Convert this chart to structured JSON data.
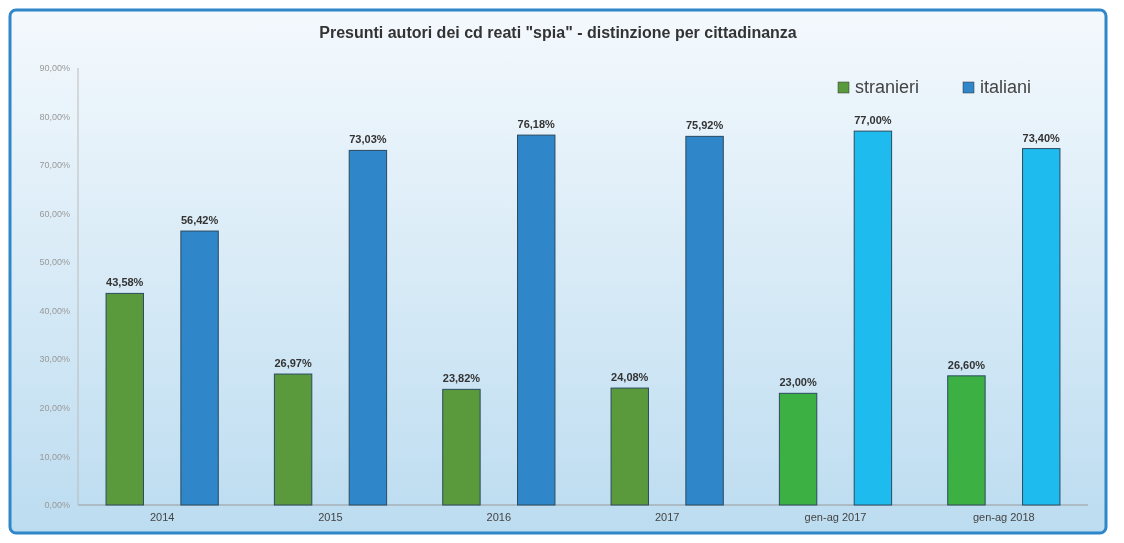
{
  "chart_data": {
    "type": "bar",
    "title": "Presunti autori dei cd reati \"spia\" - distinzione per cittadinanza",
    "categories": [
      "2014",
      "2015",
      "2016",
      "2017",
      "gen-ag 2017",
      "gen-ag 2018"
    ],
    "series": [
      {
        "name": "stranieri",
        "color": "#5a9a3c",
        "colors": [
          "#5a9a3c",
          "#5a9a3c",
          "#5a9a3c",
          "#5a9a3c",
          "#3cb043",
          "#3cb043"
        ],
        "values": [
          43.58,
          26.97,
          23.82,
          24.08,
          23.0,
          26.6
        ],
        "value_labels": [
          "43,58%",
          "26,97%",
          "23,82%",
          "24,08%",
          "23,00%",
          "26,60%"
        ]
      },
      {
        "name": "italiani",
        "color": "#2f86c8",
        "colors": [
          "#2f86c8",
          "#2f86c8",
          "#2f86c8",
          "#2f86c8",
          "#1ebcee",
          "#1ebcee"
        ],
        "values": [
          56.42,
          73.03,
          76.18,
          75.92,
          77.0,
          73.4
        ],
        "value_labels": [
          "56,42%",
          "73,03%",
          "76,18%",
          "75,92%",
          "77,00%",
          "73,40%"
        ]
      }
    ],
    "ylim": [
      0,
      90
    ],
    "yticks": [
      {
        "value": 0,
        "label": "0,00%"
      },
      {
        "value": 10,
        "label": "10,00%"
      },
      {
        "value": 20,
        "label": "20,00%"
      },
      {
        "value": 30,
        "label": "30,00%"
      },
      {
        "value": 40,
        "label": "40,00%"
      },
      {
        "value": 50,
        "label": "50,00%"
      },
      {
        "value": 60,
        "label": "60,00%"
      },
      {
        "value": 70,
        "label": "70,00%"
      },
      {
        "value": 80,
        "label": "80,00%"
      },
      {
        "value": 90,
        "label": "90,00%"
      }
    ],
    "legend": "top right"
  }
}
